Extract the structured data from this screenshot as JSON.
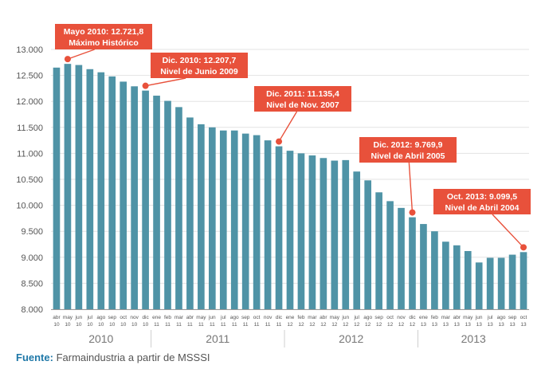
{
  "chart_data": {
    "type": "bar",
    "y_ticks": [
      "8.000",
      "8.500",
      "9.000",
      "9.500",
      "10.000",
      "10.500",
      "11.000",
      "11.500",
      "12.000",
      "12.500",
      "13.000"
    ],
    "ylim": [
      8000,
      13000
    ],
    "grid": true,
    "month_labels": [
      "abr",
      "may",
      "jun",
      "jul",
      "ago",
      "sep",
      "oct",
      "nov",
      "dic",
      "ene",
      "feb",
      "mar",
      "abr",
      "may",
      "jun",
      "jul",
      "ago",
      "sep",
      "oct",
      "nov",
      "dic",
      "ene",
      "feb",
      "mar",
      "abr",
      "may",
      "jun",
      "jul",
      "ago",
      "sep",
      "oct",
      "nov",
      "dic",
      "ene",
      "feb",
      "mar",
      "abr",
      "may",
      "jun",
      "jul",
      "ago",
      "sep",
      "oct"
    ],
    "year_labels": [
      "10",
      "10",
      "10",
      "10",
      "10",
      "10",
      "10",
      "10",
      "10",
      "11",
      "11",
      "11",
      "11",
      "11",
      "11",
      "11",
      "11",
      "11",
      "11",
      "11",
      "11",
      "12",
      "12",
      "12",
      "12",
      "12",
      "12",
      "12",
      "12",
      "12",
      "12",
      "12",
      "12",
      "13",
      "13",
      "13",
      "13",
      "13",
      "13",
      "13",
      "13",
      "13",
      "13"
    ],
    "values": [
      12650,
      12721.8,
      12700,
      12620,
      12560,
      12480,
      12380,
      12290,
      12207.7,
      12110,
      12010,
      11890,
      11690,
      11560,
      11500,
      11440,
      11440,
      11380,
      11350,
      11250,
      11135.4,
      11050,
      11000,
      10960,
      10910,
      10860,
      10870,
      10650,
      10480,
      10250,
      10080,
      9950,
      9769.9,
      9640,
      9500,
      9300,
      9230,
      9120,
      8900,
      8990,
      8990,
      9050,
      9099.5
    ],
    "year_groups": [
      {
        "label": "2010",
        "start": 0,
        "end": 8
      },
      {
        "label": "2011",
        "start": 9,
        "end": 20
      },
      {
        "label": "2012",
        "start": 21,
        "end": 32
      },
      {
        "label": "2013",
        "start": 33,
        "end": 42
      }
    ],
    "annotations": [
      {
        "index": 1,
        "line1": "Mayo 2010: 12.721,8",
        "line2": "Máximo Histórico"
      },
      {
        "index": 8,
        "line1": "Dic. 2010: 12.207,7",
        "line2": "Nivel de Junio 2009"
      },
      {
        "index": 20,
        "line1": "Dic. 2011: 11.135,4",
        "line2": "Nivel de Nov. 2007"
      },
      {
        "index": 32,
        "line1": "Dic. 2012: 9.769,9",
        "line2": "Nivel de Abril 2005"
      },
      {
        "index": 42,
        "line1": "Oct. 2013: 9.099,5",
        "line2": "Nivel de Abril 2004"
      }
    ],
    "colors": {
      "bar": "#4f93a6",
      "annotation": "#e8513b",
      "axis": "#666666",
      "grid": "#e3e3e3"
    }
  },
  "source": {
    "label": "Fuente:",
    "text": "Farmaindustria a partir de MSSSI"
  }
}
